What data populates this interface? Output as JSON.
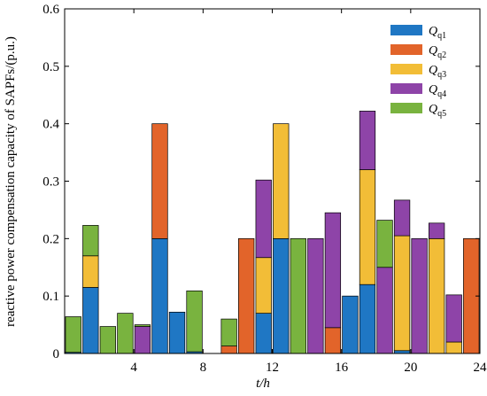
{
  "chart_data": {
    "type": "bar",
    "stacked": true,
    "xlabel": "t/h",
    "ylabel": "reactive power compensation capacity of SAPFs/(p.u.)",
    "xlim": [
      0,
      24
    ],
    "ylim": [
      0,
      0.6
    ],
    "x_ticks": [
      4,
      8,
      12,
      16,
      20,
      24
    ],
    "y_ticks": [
      0,
      0.1,
      0.2,
      0.3,
      0.4,
      0.5,
      0.6
    ],
    "grid": false,
    "legend_position": "top-right",
    "hours": [
      1,
      2,
      3,
      4,
      5,
      6,
      7,
      8,
      9,
      10,
      11,
      12,
      13,
      14,
      15,
      16,
      17,
      18,
      19,
      20,
      21,
      22,
      23,
      24
    ],
    "series": [
      {
        "name": "Qq1",
        "label_main": "Q",
        "label_sub": "q1",
        "color": "#1f77c4",
        "values": [
          0.002,
          0.115,
          0,
          0,
          0,
          0.2,
          0.072,
          0.003,
          0,
          0,
          0,
          0.07,
          0.2,
          0,
          0,
          0,
          0.1,
          0.12,
          0,
          0.005,
          0,
          0,
          0,
          0
        ]
      },
      {
        "name": "Qq2",
        "label_main": "Q",
        "label_sub": "q2",
        "color": "#e2642a",
        "values": [
          0,
          0,
          0,
          0,
          0,
          0.2,
          0,
          0,
          0,
          0.013,
          0.2,
          0,
          0,
          0,
          0,
          0.045,
          0,
          0,
          0,
          0,
          0,
          0,
          0,
          0.2
        ]
      },
      {
        "name": "Qq3",
        "label_main": "Q",
        "label_sub": "q3",
        "color": "#f2bd37",
        "values": [
          0,
          0.055,
          0,
          0,
          0,
          0,
          0,
          0,
          0,
          0,
          0,
          0.097,
          0.2,
          0,
          0,
          0,
          0,
          0.2,
          0,
          0.2,
          0,
          0.2,
          0.02,
          0
        ]
      },
      {
        "name": "Qq4",
        "label_main": "Q",
        "label_sub": "q4",
        "color": "#8e44a8",
        "values": [
          0,
          0,
          0,
          0,
          0.047,
          0,
          0,
          0,
          0,
          0,
          0,
          0.135,
          0,
          0,
          0.2,
          0.2,
          0,
          0.102,
          0.15,
          0.062,
          0.2,
          0.027,
          0.082,
          0
        ]
      },
      {
        "name": "Qq5",
        "label_main": "Q",
        "label_sub": "q5",
        "color": "#79b33f",
        "values": [
          0.062,
          0.053,
          0.047,
          0.07,
          0.003,
          0,
          0,
          0.106,
          0,
          0.047,
          0,
          0,
          0,
          0.2,
          0,
          0,
          0,
          0,
          0.082,
          0,
          0,
          0,
          0,
          0
        ]
      }
    ]
  }
}
